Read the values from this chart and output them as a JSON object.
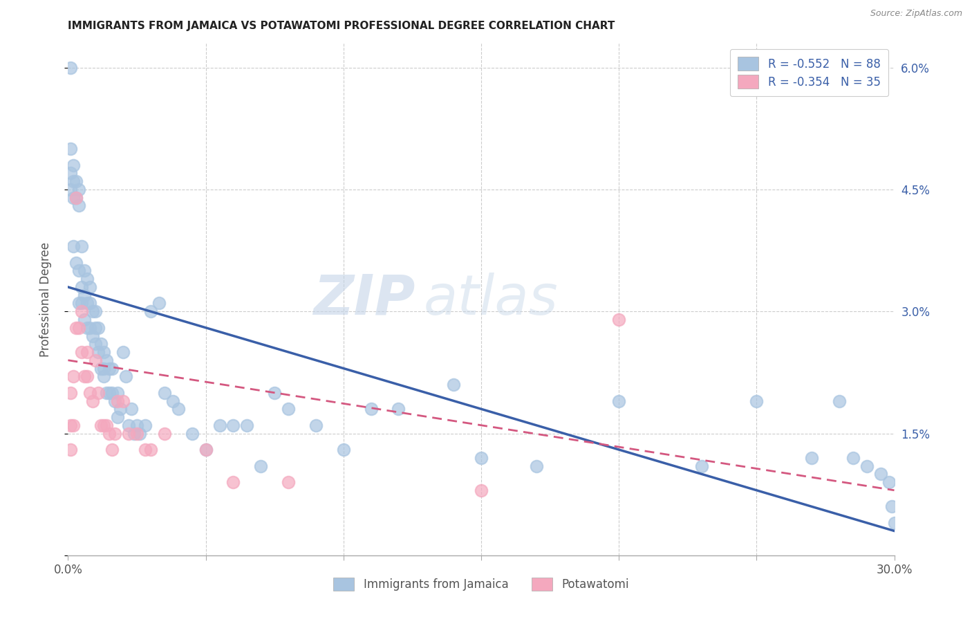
{
  "title": "IMMIGRANTS FROM JAMAICA VS POTAWATOMI PROFESSIONAL DEGREE CORRELATION CHART",
  "source": "Source: ZipAtlas.com",
  "ylabel": "Professional Degree",
  "legend_labels": [
    "Immigrants from Jamaica",
    "Potawatomi"
  ],
  "legend_r_values": [
    "R = -0.552",
    "R = -0.354"
  ],
  "legend_n_values": [
    "N = 88",
    "N = 35"
  ],
  "blue_color": "#a8c4e0",
  "pink_color": "#f4a8be",
  "blue_line_color": "#3a5fa8",
  "pink_line_color": "#d45880",
  "legend_text_color": "#3a5fa8",
  "right_axis_color": "#3a5fa8",
  "xlim": [
    0,
    0.3
  ],
  "ylim": [
    0,
    0.063
  ],
  "y_ticks": [
    0,
    0.015,
    0.03,
    0.045,
    0.06
  ],
  "y_tick_labels": [
    "",
    "1.5%",
    "3.0%",
    "4.5%",
    "6.0%"
  ],
  "x_ticks": [
    0,
    0.05,
    0.1,
    0.15,
    0.2,
    0.25,
    0.3
  ],
  "x_tick_labels": [
    "0.0%",
    "",
    "",
    "",
    "",
    "",
    "30.0%"
  ],
  "blue_line": [
    0.033,
    0.003
  ],
  "pink_line": [
    0.024,
    0.008
  ],
  "blue_x": [
    0.001,
    0.001,
    0.001,
    0.001,
    0.002,
    0.002,
    0.002,
    0.002,
    0.003,
    0.003,
    0.003,
    0.004,
    0.004,
    0.004,
    0.004,
    0.005,
    0.005,
    0.005,
    0.006,
    0.006,
    0.006,
    0.007,
    0.007,
    0.007,
    0.008,
    0.008,
    0.008,
    0.009,
    0.009,
    0.01,
    0.01,
    0.01,
    0.011,
    0.011,
    0.012,
    0.012,
    0.013,
    0.013,
    0.013,
    0.014,
    0.014,
    0.015,
    0.015,
    0.016,
    0.016,
    0.017,
    0.018,
    0.018,
    0.019,
    0.02,
    0.021,
    0.022,
    0.023,
    0.024,
    0.025,
    0.026,
    0.028,
    0.03,
    0.033,
    0.035,
    0.038,
    0.04,
    0.045,
    0.05,
    0.055,
    0.06,
    0.065,
    0.07,
    0.075,
    0.08,
    0.09,
    0.1,
    0.11,
    0.12,
    0.14,
    0.15,
    0.17,
    0.2,
    0.23,
    0.25,
    0.27,
    0.28,
    0.285,
    0.29,
    0.295,
    0.298,
    0.299,
    0.3
  ],
  "blue_y": [
    0.06,
    0.05,
    0.047,
    0.045,
    0.048,
    0.046,
    0.044,
    0.038,
    0.046,
    0.044,
    0.036,
    0.045,
    0.043,
    0.035,
    0.031,
    0.038,
    0.033,
    0.031,
    0.035,
    0.032,
    0.029,
    0.034,
    0.031,
    0.028,
    0.033,
    0.031,
    0.028,
    0.03,
    0.027,
    0.03,
    0.028,
    0.026,
    0.028,
    0.025,
    0.026,
    0.023,
    0.025,
    0.023,
    0.022,
    0.024,
    0.02,
    0.023,
    0.02,
    0.023,
    0.02,
    0.019,
    0.02,
    0.017,
    0.018,
    0.025,
    0.022,
    0.016,
    0.018,
    0.015,
    0.016,
    0.015,
    0.016,
    0.03,
    0.031,
    0.02,
    0.019,
    0.018,
    0.015,
    0.013,
    0.016,
    0.016,
    0.016,
    0.011,
    0.02,
    0.018,
    0.016,
    0.013,
    0.018,
    0.018,
    0.021,
    0.012,
    0.011,
    0.019,
    0.011,
    0.019,
    0.012,
    0.019,
    0.012,
    0.011,
    0.01,
    0.009,
    0.006,
    0.004
  ],
  "pink_x": [
    0.001,
    0.001,
    0.001,
    0.002,
    0.002,
    0.003,
    0.003,
    0.004,
    0.005,
    0.005,
    0.006,
    0.007,
    0.007,
    0.008,
    0.009,
    0.01,
    0.011,
    0.012,
    0.013,
    0.014,
    0.015,
    0.016,
    0.017,
    0.018,
    0.02,
    0.022,
    0.025,
    0.028,
    0.03,
    0.035,
    0.05,
    0.06,
    0.08,
    0.15,
    0.2
  ],
  "pink_y": [
    0.02,
    0.016,
    0.013,
    0.022,
    0.016,
    0.044,
    0.028,
    0.028,
    0.03,
    0.025,
    0.022,
    0.025,
    0.022,
    0.02,
    0.019,
    0.024,
    0.02,
    0.016,
    0.016,
    0.016,
    0.015,
    0.013,
    0.015,
    0.019,
    0.019,
    0.015,
    0.015,
    0.013,
    0.013,
    0.015,
    0.013,
    0.009,
    0.009,
    0.008,
    0.029
  ]
}
